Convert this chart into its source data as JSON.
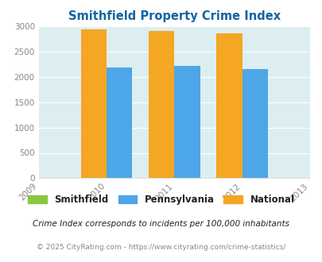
{
  "title": "Smithfield Property Crime Index",
  "years": [
    2010,
    2011,
    2012
  ],
  "xlim": [
    2009,
    2013
  ],
  "ylim": [
    0,
    3000
  ],
  "yticks": [
    0,
    500,
    1000,
    1500,
    2000,
    2500,
    3000
  ],
  "smithfield": [
    0,
    0,
    0
  ],
  "pennsylvania": [
    2180,
    2215,
    2155
  ],
  "national": [
    2930,
    2910,
    2855
  ],
  "colors": {
    "smithfield": "#8dc63f",
    "pennsylvania": "#4da6e8",
    "national": "#f5a623"
  },
  "bar_width": 0.38,
  "bar_gap": 0.0,
  "plot_bg": "#ddeef0",
  "fig_bg": "#ffffff",
  "title_color": "#1464a0",
  "axis_color": "#888888",
  "legend_labels": [
    "Smithfield",
    "Pennsylvania",
    "National"
  ],
  "footnote1": "Crime Index corresponds to incidents per 100,000 inhabitants",
  "footnote2": "© 2025 CityRating.com - https://www.cityrating.com/crime-statistics/",
  "footnote1_color": "#222222",
  "footnote2_color": "#888888"
}
